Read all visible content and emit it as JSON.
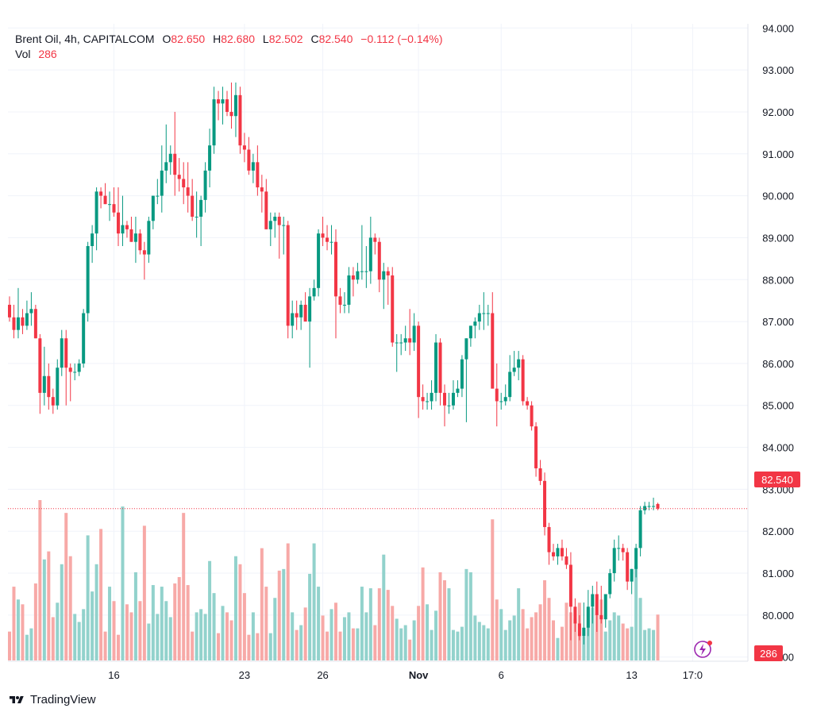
{
  "legend": {
    "symbol": "Brent Oil, 4h, CAPITALCOM",
    "o_label": "O",
    "o_value": "82.650",
    "h_label": "H",
    "h_value": "82.680",
    "l_label": "L",
    "l_value": "82.502",
    "c_label": "C",
    "c_value": "82.540",
    "change": "−0.112 (−0.14%)",
    "vol_label": "Vol",
    "vol_value": "286"
  },
  "price_tag": "82.540",
  "volume_tag": "286",
  "brand": "TradingView",
  "colors": {
    "up": "#089981",
    "down": "#f23645",
    "up_vol": "#92d2cc",
    "down_vol": "#f7a9a7",
    "grid": "#f0f3fa"
  },
  "chart_data": {
    "type": "candlestick",
    "title": "Brent Oil, 4h, CAPITALCOM",
    "y_axis": {
      "min": 78.9,
      "max": 94.1,
      "ticks": [
        94,
        93,
        92,
        91,
        90,
        89,
        88,
        87,
        86,
        85,
        84,
        83,
        82,
        81,
        80,
        79
      ]
    },
    "x_axis": {
      "ticks": [
        {
          "label": "16",
          "bar": 24
        },
        {
          "label": "23",
          "bar": 54
        },
        {
          "label": "26",
          "bar": 72
        },
        {
          "label": "Nov",
          "bar": 94
        },
        {
          "label": "6",
          "bar": 113
        },
        {
          "label": "13",
          "bar": 143
        },
        {
          "label": "17:0",
          "bar": 157
        }
      ]
    },
    "last_price": 82.54,
    "ohlcv": [
      [
        87.4,
        87.6,
        87.0,
        87.1,
        180
      ],
      [
        87.1,
        87.4,
        86.6,
        86.8,
        460
      ],
      [
        86.8,
        87.8,
        86.6,
        87.1,
        380
      ],
      [
        87.1,
        87.3,
        86.7,
        86.9,
        350
      ],
      [
        86.9,
        87.5,
        86.8,
        87.2,
        160
      ],
      [
        87.2,
        87.7,
        86.9,
        87.3,
        200
      ],
      [
        87.3,
        87.4,
        86.6,
        86.6,
        480
      ],
      [
        86.6,
        86.7,
        84.8,
        85.3,
        1000
      ],
      [
        85.3,
        86.4,
        85.0,
        85.7,
        630
      ],
      [
        85.7,
        86.0,
        84.9,
        85.2,
        680
      ],
      [
        85.2,
        85.4,
        84.8,
        85.0,
        270
      ],
      [
        85.0,
        86.1,
        84.9,
        85.9,
        360
      ],
      [
        85.9,
        86.8,
        85.7,
        86.6,
        600
      ],
      [
        86.6,
        86.8,
        85.0,
        85.9,
        920
      ],
      [
        85.9,
        86.0,
        85.1,
        85.8,
        650
      ],
      [
        85.8,
        86.0,
        85.6,
        85.8,
        290
      ],
      [
        85.8,
        86.1,
        85.7,
        86.0,
        240
      ],
      [
        86.0,
        87.3,
        85.9,
        87.2,
        320
      ],
      [
        87.2,
        88.9,
        87.0,
        88.8,
        780
      ],
      [
        88.8,
        89.3,
        88.4,
        89.1,
        430
      ],
      [
        89.1,
        90.2,
        88.7,
        90.1,
        600
      ],
      [
        90.1,
        90.2,
        89.7,
        90.0,
        820
      ],
      [
        90.0,
        90.3,
        89.8,
        89.8,
        180
      ],
      [
        89.8,
        90.1,
        89.4,
        89.8,
        460
      ],
      [
        89.8,
        90.2,
        89.5,
        89.6,
        370
      ],
      [
        89.6,
        90.2,
        88.8,
        89.1,
        160
      ],
      [
        89.1,
        90.0,
        88.8,
        89.3,
        960
      ],
      [
        89.3,
        89.4,
        89.0,
        89.2,
        350
      ],
      [
        89.2,
        89.5,
        88.9,
        88.9,
        300
      ],
      [
        88.9,
        89.5,
        88.4,
        89.1,
        550
      ],
      [
        89.1,
        89.2,
        88.6,
        88.7,
        370
      ],
      [
        88.7,
        88.9,
        88.0,
        88.6,
        840
      ],
      [
        88.6,
        89.5,
        88.4,
        89.4,
        230
      ],
      [
        89.4,
        90.0,
        89.2,
        90.0,
        470
      ],
      [
        90.0,
        90.4,
        89.8,
        90.0,
        290
      ],
      [
        90.0,
        91.2,
        89.6,
        90.6,
        460
      ],
      [
        90.6,
        91.7,
        90.3,
        90.8,
        370
      ],
      [
        90.8,
        91.2,
        90.5,
        91.0,
        270
      ],
      [
        91.0,
        92.0,
        90.0,
        90.5,
        480
      ],
      [
        90.5,
        90.9,
        90.1,
        90.4,
        520
      ],
      [
        90.4,
        90.8,
        89.8,
        90.2,
        920
      ],
      [
        90.2,
        90.8,
        89.6,
        90.0,
        470
      ],
      [
        90.0,
        90.4,
        89.4,
        89.5,
        180
      ],
      [
        89.5,
        90.1,
        89.0,
        89.5,
        300
      ],
      [
        89.5,
        90.0,
        88.8,
        89.9,
        320
      ],
      [
        89.9,
        90.8,
        89.6,
        90.6,
        290
      ],
      [
        90.6,
        91.6,
        90.2,
        91.2,
        620
      ],
      [
        91.2,
        92.6,
        91.0,
        92.3,
        420
      ],
      [
        92.3,
        92.5,
        91.8,
        92.2,
        170
      ],
      [
        92.2,
        92.6,
        91.7,
        92.3,
        340
      ],
      [
        92.3,
        92.5,
        91.9,
        92.0,
        300
      ],
      [
        92.0,
        92.7,
        91.6,
        91.9,
        250
      ],
      [
        91.9,
        92.7,
        91.4,
        92.4,
        650
      ],
      [
        92.4,
        92.6,
        91.0,
        91.2,
        600
      ],
      [
        91.2,
        91.5,
        90.8,
        91.1,
        420
      ],
      [
        91.1,
        91.4,
        90.5,
        90.6,
        160
      ],
      [
        90.6,
        91.0,
        90.3,
        90.8,
        300
      ],
      [
        90.8,
        91.2,
        90.0,
        90.2,
        170
      ],
      [
        90.2,
        90.5,
        89.6,
        90.1,
        700
      ],
      [
        90.1,
        90.4,
        89.2,
        89.2,
        460
      ],
      [
        89.2,
        89.6,
        88.8,
        89.4,
        170
      ],
      [
        89.4,
        89.6,
        89.0,
        89.5,
        390
      ],
      [
        89.5,
        89.6,
        88.5,
        89.3,
        560
      ],
      [
        89.3,
        89.5,
        88.6,
        89.3,
        570
      ],
      [
        89.3,
        89.4,
        86.6,
        86.9,
        730
      ],
      [
        86.9,
        87.5,
        86.6,
        87.2,
        300
      ],
      [
        87.2,
        87.5,
        86.8,
        87.1,
        190
      ],
      [
        87.1,
        87.5,
        86.8,
        87.4,
        220
      ],
      [
        87.4,
        87.7,
        87.0,
        87.0,
        330
      ],
      [
        87.0,
        87.8,
        85.9,
        87.6,
        540
      ],
      [
        87.6,
        88.0,
        87.5,
        87.8,
        730
      ],
      [
        87.8,
        89.2,
        87.6,
        89.1,
        460
      ],
      [
        89.1,
        89.5,
        88.8,
        89.0,
        280
      ],
      [
        89.0,
        89.3,
        88.7,
        88.9,
        180
      ],
      [
        88.9,
        89.3,
        88.6,
        88.9,
        320
      ],
      [
        88.9,
        89.2,
        86.6,
        87.6,
        360
      ],
      [
        87.6,
        87.8,
        87.2,
        87.4,
        180
      ],
      [
        87.4,
        87.7,
        87.2,
        87.4,
        270
      ],
      [
        87.4,
        88.3,
        87.2,
        88.1,
        300
      ],
      [
        88.1,
        88.3,
        87.6,
        88.0,
        200
      ],
      [
        88.0,
        88.4,
        87.9,
        88.2,
        200
      ],
      [
        88.2,
        89.3,
        88.0,
        88.2,
        460
      ],
      [
        88.2,
        88.8,
        87.8,
        88.2,
        300
      ],
      [
        88.2,
        89.5,
        87.9,
        89.0,
        450
      ],
      [
        89.0,
        89.1,
        88.6,
        88.9,
        220
      ],
      [
        88.9,
        89.0,
        87.7,
        88.0,
        450
      ],
      [
        88.0,
        88.4,
        87.3,
        88.2,
        660
      ],
      [
        88.2,
        88.3,
        87.4,
        88.1,
        440
      ],
      [
        88.1,
        88.3,
        86.4,
        86.5,
        340
      ],
      [
        86.5,
        86.7,
        85.8,
        86.5,
        260
      ],
      [
        86.5,
        86.7,
        86.2,
        86.5,
        200
      ],
      [
        86.5,
        86.9,
        86.3,
        86.6,
        220
      ],
      [
        86.6,
        87.3,
        86.2,
        86.5,
        130
      ],
      [
        86.5,
        87.2,
        86.3,
        86.9,
        250
      ],
      [
        86.9,
        87.0,
        84.7,
        85.2,
        340
      ],
      [
        85.2,
        85.5,
        84.9,
        85.1,
        580
      ],
      [
        85.1,
        85.3,
        84.9,
        85.1,
        350
      ],
      [
        85.1,
        85.6,
        84.9,
        85.3,
        190
      ],
      [
        85.3,
        86.7,
        85.1,
        86.5,
        310
      ],
      [
        86.5,
        86.6,
        85.0,
        85.3,
        550
      ],
      [
        85.3,
        85.5,
        84.5,
        85.0,
        500
      ],
      [
        85.0,
        85.3,
        84.8,
        85.0,
        450
      ],
      [
        85.0,
        85.6,
        84.9,
        85.3,
        190
      ],
      [
        85.3,
        85.6,
        85.2,
        85.4,
        180
      ],
      [
        85.4,
        86.2,
        85.2,
        86.1,
        210
      ],
      [
        86.1,
        86.6,
        84.6,
        86.6,
        570
      ],
      [
        86.6,
        86.9,
        86.4,
        86.9,
        550
      ],
      [
        86.9,
        87.1,
        86.6,
        87.0,
        280
      ],
      [
        87.0,
        87.4,
        86.8,
        87.2,
        240
      ],
      [
        87.2,
        87.7,
        86.8,
        87.2,
        220
      ],
      [
        87.2,
        87.4,
        86.9,
        87.2,
        200
      ],
      [
        87.2,
        87.7,
        85.5,
        85.4,
        880
      ],
      [
        85.4,
        86.0,
        84.5,
        85.1,
        380
      ],
      [
        85.1,
        85.3,
        84.9,
        85.1,
        320
      ],
      [
        85.1,
        85.5,
        85.0,
        85.2,
        190
      ],
      [
        85.2,
        86.2,
        85.1,
        85.8,
        250
      ],
      [
        85.8,
        86.3,
        85.7,
        85.9,
        280
      ],
      [
        85.9,
        86.3,
        85.6,
        86.1,
        450
      ],
      [
        86.1,
        86.2,
        85.0,
        85.1,
        320
      ],
      [
        85.1,
        85.2,
        84.9,
        85.0,
        200
      ],
      [
        85.0,
        85.1,
        84.4,
        84.5,
        270
      ],
      [
        84.5,
        84.6,
        83.3,
        83.5,
        300
      ],
      [
        83.5,
        83.7,
        83.1,
        83.2,
        350
      ],
      [
        83.2,
        83.4,
        81.9,
        82.1,
        500
      ],
      [
        82.1,
        82.2,
        81.2,
        81.5,
        390
      ],
      [
        81.5,
        81.7,
        81.3,
        81.4,
        250
      ],
      [
        81.4,
        81.7,
        81.2,
        81.6,
        140
      ],
      [
        81.6,
        81.8,
        81.3,
        81.4,
        210
      ],
      [
        81.4,
        81.6,
        81.1,
        81.2,
        360
      ],
      [
        81.2,
        81.5,
        79.4,
        80.2,
        300
      ],
      [
        80.2,
        80.4,
        79.6,
        79.8,
        260
      ],
      [
        79.8,
        80.0,
        79.4,
        79.5,
        360
      ],
      [
        79.5,
        80.3,
        79.3,
        79.7,
        150
      ],
      [
        79.7,
        80.6,
        79.5,
        80.2,
        320
      ],
      [
        80.2,
        80.7,
        79.8,
        80.5,
        330
      ],
      [
        80.5,
        80.8,
        79.6,
        80.0,
        290
      ],
      [
        80.0,
        80.7,
        79.8,
        79.9,
        380
      ],
      [
        79.9,
        80.4,
        79.7,
        80.5,
        180
      ],
      [
        80.5,
        81.1,
        80.4,
        81.0,
        250
      ],
      [
        81.0,
        81.8,
        80.8,
        81.6,
        300
      ],
      [
        81.6,
        81.9,
        81.3,
        81.6,
        280
      ],
      [
        81.6,
        81.7,
        81.3,
        81.5,
        230
      ],
      [
        81.5,
        81.6,
        80.6,
        80.8,
        200
      ],
      [
        80.8,
        81.1,
        80.5,
        81.1,
        210
      ],
      [
        81.1,
        81.7,
        80.9,
        81.6,
        590
      ],
      [
        81.6,
        82.6,
        81.4,
        82.5,
        390
      ],
      [
        82.5,
        82.7,
        82.4,
        82.6,
        190
      ],
      [
        82.6,
        82.7,
        82.5,
        82.6,
        200
      ],
      [
        82.6,
        82.8,
        82.5,
        82.6,
        190
      ],
      [
        82.65,
        82.68,
        82.502,
        82.54,
        286
      ]
    ]
  }
}
